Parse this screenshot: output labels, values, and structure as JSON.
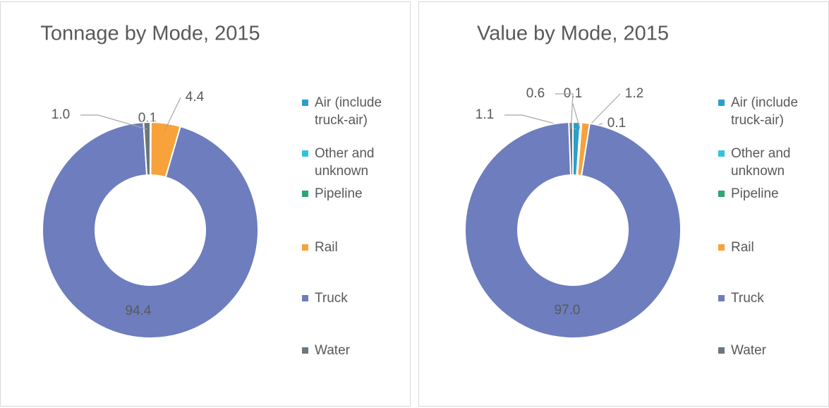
{
  "chart_data": [
    {
      "type": "doughnut",
      "title": "Tonnage by Mode, 2015",
      "categories": [
        "Air (include truck-air)",
        "Other and unknown",
        "Pipeline",
        "Rail",
        "Truck",
        "Water"
      ],
      "values": [
        0.1,
        null,
        null,
        4.4,
        94.4,
        1.0
      ],
      "value_labels": [
        "0.1",
        null,
        null,
        "4.4",
        "94.4",
        "1.0"
      ],
      "colors": [
        "#2a9fc9",
        "#33c3dc",
        "#2aa774",
        "#f7a23b",
        "#6d7dbd",
        "#6b767d"
      ],
      "legend": "right"
    },
    {
      "type": "doughnut",
      "title": "Value by Mode, 2015",
      "categories": [
        "Air (include truck-air)",
        "Other and unknown",
        "Pipeline",
        "Rail",
        "Truck",
        "Water"
      ],
      "values": [
        1.1,
        0.1,
        0.1,
        1.2,
        97.0,
        0.6
      ],
      "value_labels": [
        "1.1",
        "0.1",
        "0.1",
        "1.2",
        "97.0",
        "0.6"
      ],
      "colors": [
        "#2a9fc9",
        "#33c3dc",
        "#2aa774",
        "#f7a23b",
        "#6d7dbd",
        "#6b767d"
      ],
      "legend": "right"
    }
  ]
}
